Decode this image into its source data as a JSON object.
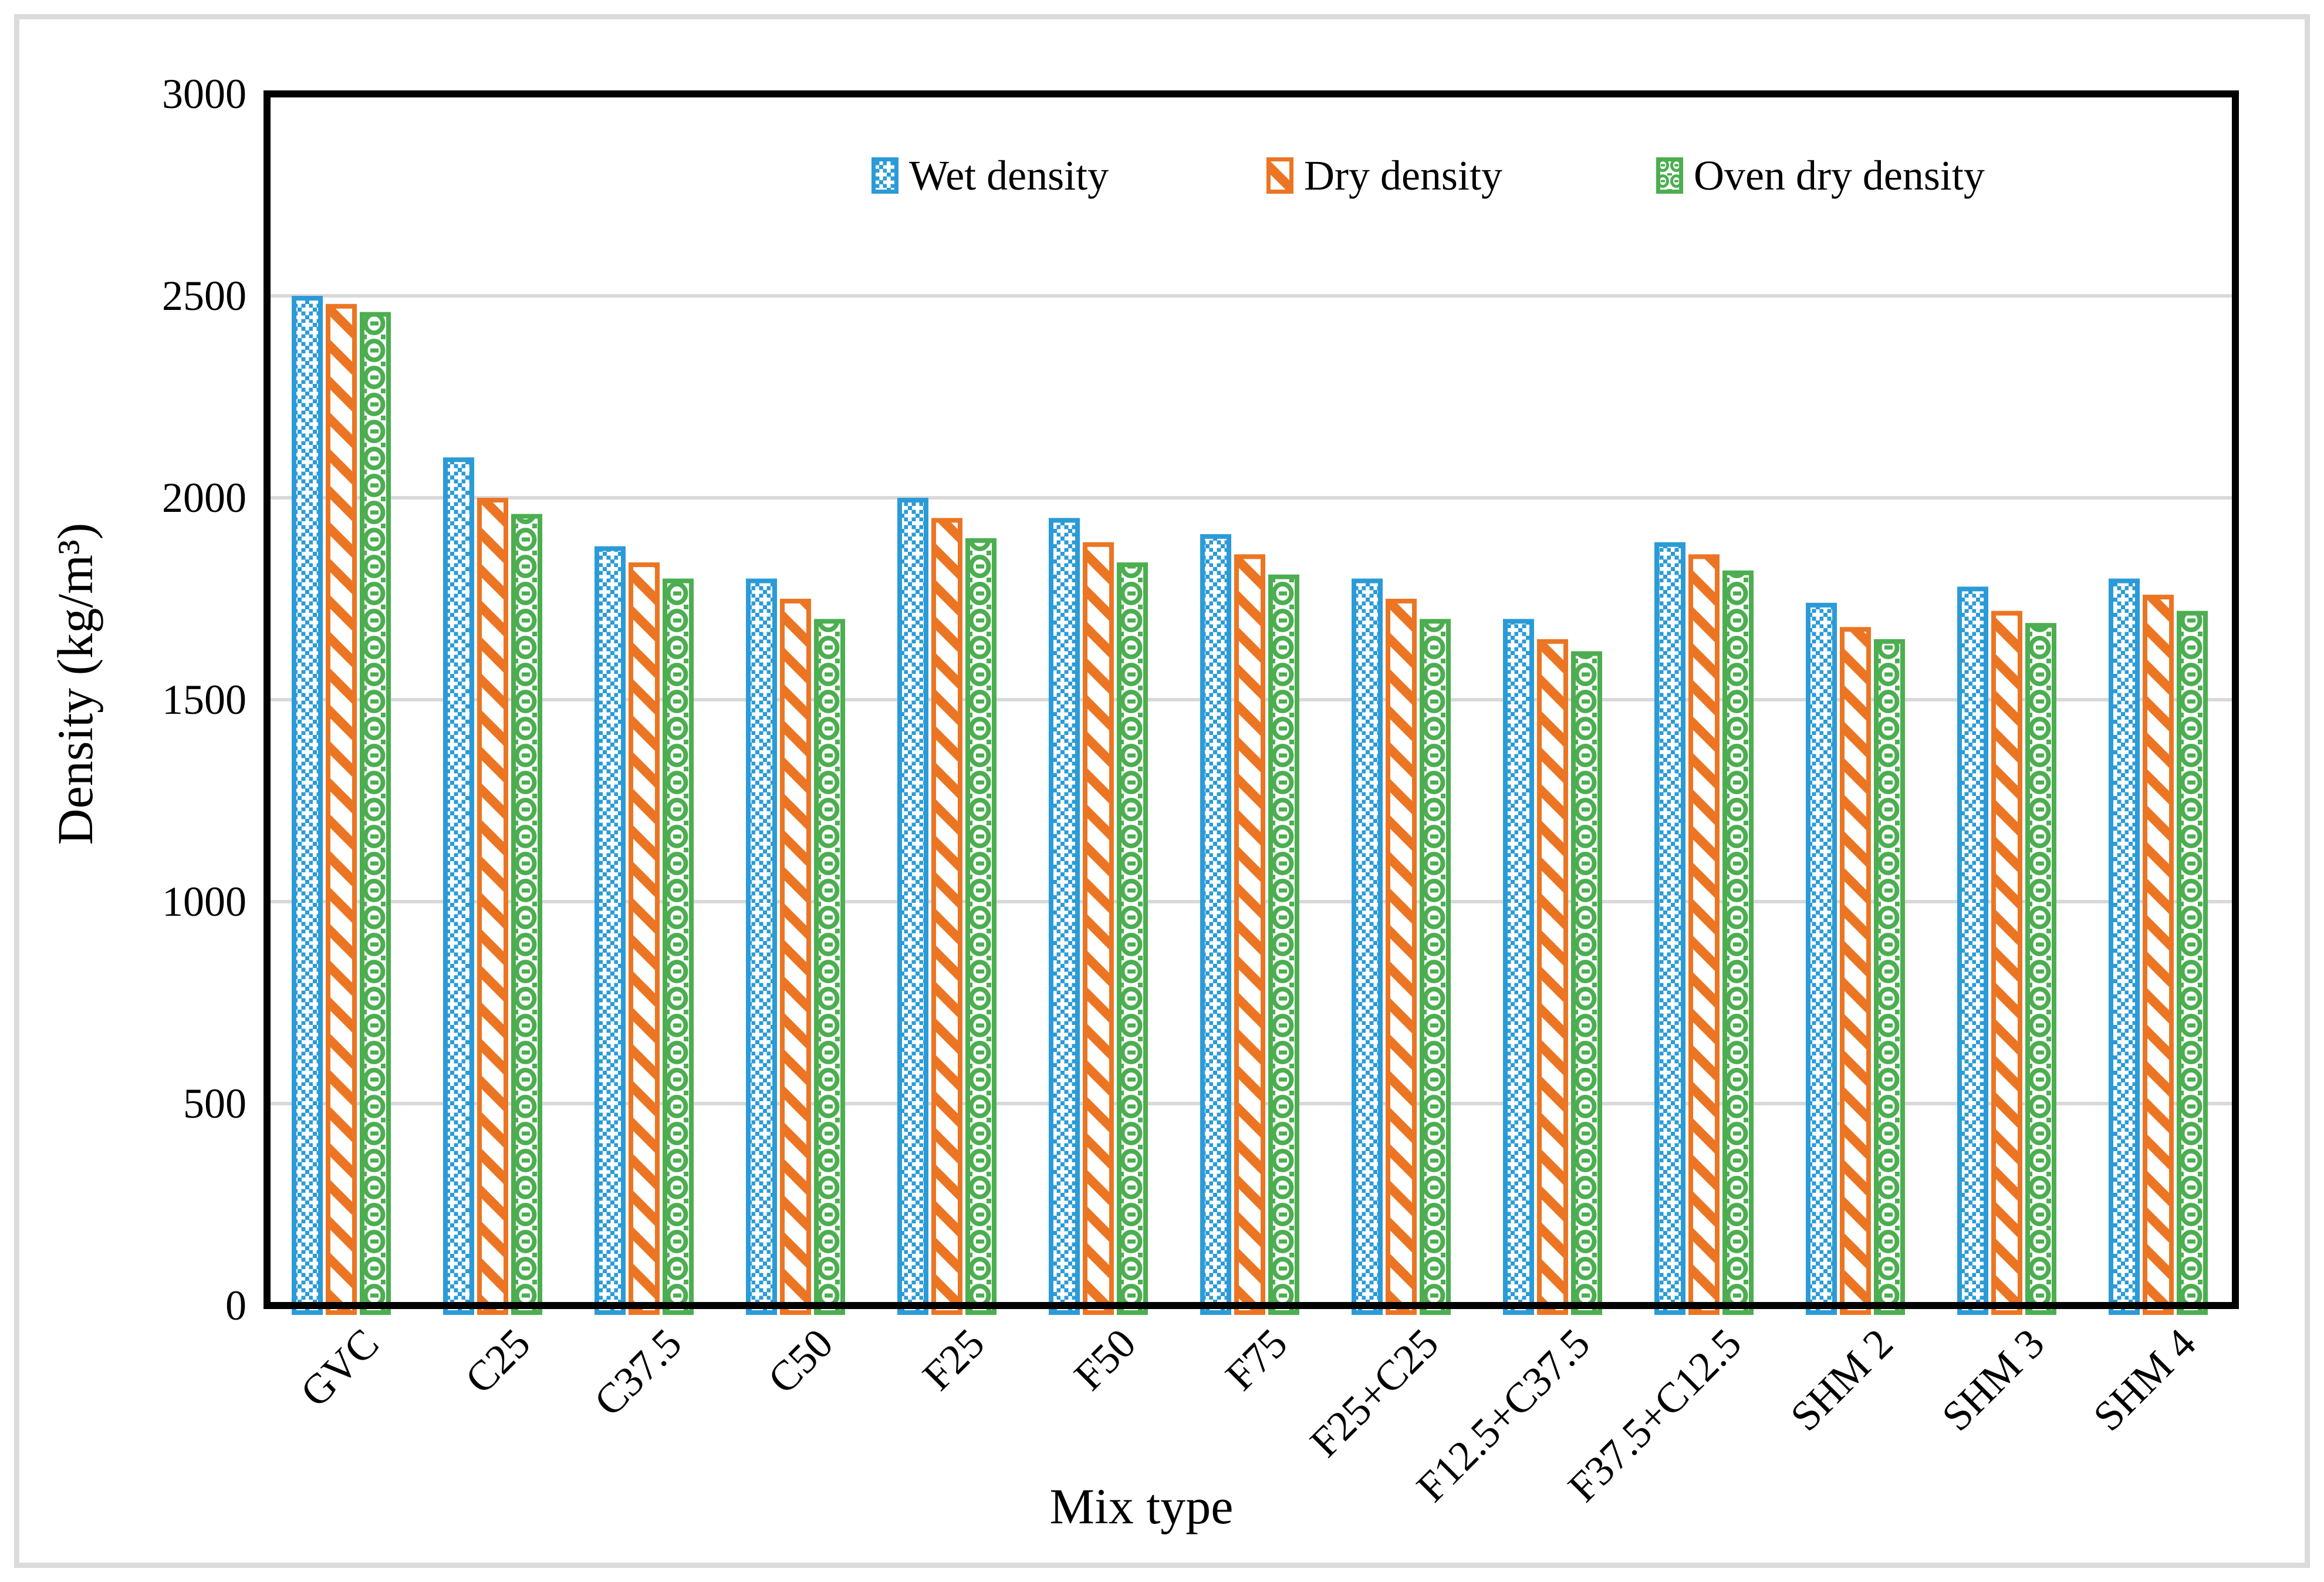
{
  "figure": {
    "background": "#FFFFFF",
    "outer_border_color": "#DBDBDB",
    "plot_frame_color": "#000000"
  },
  "y_axis": {
    "title": "Density (kg/m³)",
    "min": 0,
    "max": 3000,
    "step": 500,
    "tick_labels": [
      "0",
      "500",
      "1000",
      "1500",
      "2000",
      "2500",
      "3000"
    ],
    "gridline_color": "#D9D9D9"
  },
  "x_axis": {
    "title": "Mix type"
  },
  "legend": {
    "items": [
      {
        "label": "Wet density",
        "series": "wet",
        "color": "#2B9BD7",
        "pattern": "dotted-trellis"
      },
      {
        "label": "Dry density",
        "series": "dry",
        "color": "#EC7523",
        "pattern": "diagonal-stripes"
      },
      {
        "label": "Oven dry density",
        "series": "oven",
        "color": "#4CAE50",
        "pattern": "circle-chain"
      }
    ]
  },
  "chart_data": {
    "type": "bar",
    "title": "",
    "xlabel": "Mix type",
    "ylabel": "Density (kg/m³)",
    "ylim": [
      0,
      3000
    ],
    "ytick_step": 500,
    "grid": "horizontal",
    "legend_position": "top-center-inside",
    "categories": [
      "GVC",
      "C25",
      "C37.5",
      "C50",
      "F25",
      "F50",
      "F75",
      "F25+C25",
      "F12.5+C37.5",
      "F37.5+C12.5",
      "SHM 2",
      "SHM 3",
      "SHM 4"
    ],
    "series": [
      {
        "name": "Wet density",
        "color": "#2B9BD7",
        "pattern": "dotted-trellis",
        "values": [
          2500,
          2100,
          1880,
          1800,
          2000,
          1950,
          1910,
          1800,
          1700,
          1890,
          1740,
          1780,
          1800
        ]
      },
      {
        "name": "Dry density",
        "color": "#EC7523",
        "pattern": "diagonal-stripes",
        "values": [
          2480,
          2000,
          1840,
          1750,
          1950,
          1890,
          1860,
          1750,
          1650,
          1860,
          1680,
          1720,
          1760
        ]
      },
      {
        "name": "Oven dry density",
        "color": "#4CAE50",
        "pattern": "circle-chain",
        "values": [
          2460,
          1960,
          1800,
          1700,
          1900,
          1840,
          1810,
          1700,
          1620,
          1820,
          1650,
          1690,
          1720
        ]
      }
    ]
  }
}
